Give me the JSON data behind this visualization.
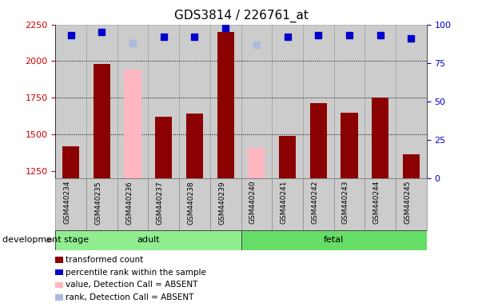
{
  "title": "GDS3814 / 226761_at",
  "samples": [
    "GSM440234",
    "GSM440235",
    "GSM440236",
    "GSM440237",
    "GSM440238",
    "GSM440239",
    "GSM440240",
    "GSM440241",
    "GSM440242",
    "GSM440243",
    "GSM440244",
    "GSM440245"
  ],
  "bar_values": [
    1415,
    1980,
    1940,
    1620,
    1640,
    2200,
    1405,
    1490,
    1710,
    1645,
    1750,
    1360
  ],
  "bar_absent": [
    false,
    false,
    true,
    false,
    false,
    false,
    true,
    false,
    false,
    false,
    false,
    false
  ],
  "percentile_values": [
    93,
    95,
    88,
    92,
    92,
    98,
    87,
    92,
    93,
    93,
    93,
    91
  ],
  "percentile_absent": [
    false,
    false,
    true,
    false,
    false,
    false,
    true,
    false,
    false,
    false,
    false,
    false
  ],
  "ylim_left": [
    1200,
    2250
  ],
  "ylim_right": [
    0,
    100
  ],
  "yticks_left": [
    1250,
    1500,
    1750,
    2000,
    2250
  ],
  "yticks_right": [
    0,
    25,
    50,
    75,
    100
  ],
  "group_starts": [
    0,
    6
  ],
  "group_ends": [
    6,
    12
  ],
  "group_labels": [
    "adult",
    "fetal"
  ],
  "group_colors": [
    "#90EE90",
    "#66DD66"
  ],
  "group_label_text": "development stage",
  "bar_color_present": "#8B0000",
  "bar_color_absent": "#FFB6C1",
  "dot_color_present": "#0000CC",
  "dot_color_absent": "#AABBDD",
  "tick_label_color_left": "#CC0000",
  "tick_label_color_right": "#0000CC",
  "xtick_bg_color": "#CCCCCC",
  "xtick_border_color": "#888888",
  "legend_items": [
    {
      "label": "transformed count",
      "color": "#8B0000"
    },
    {
      "label": "percentile rank within the sample",
      "color": "#0000CC"
    },
    {
      "label": "value, Detection Call = ABSENT",
      "color": "#FFB6C1"
    },
    {
      "label": "rank, Detection Call = ABSENT",
      "color": "#AABBDD"
    }
  ]
}
